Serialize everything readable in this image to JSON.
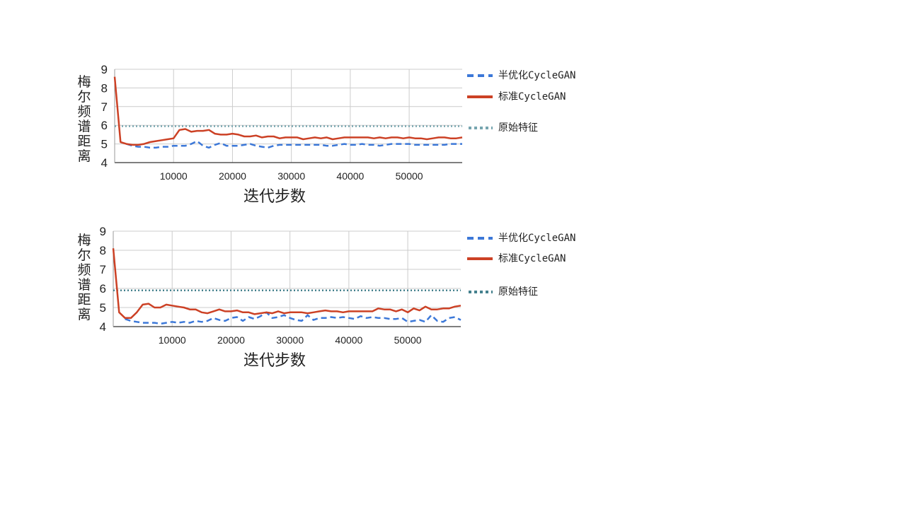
{
  "chart_data": [
    {
      "type": "line",
      "xlabel": "迭代步数",
      "ylabel": "梅尔频谱距离",
      "xlim": [
        0,
        59000
      ],
      "ylim": [
        4,
        9
      ],
      "xticks": [
        10000,
        20000,
        30000,
        40000,
        50000
      ],
      "yticks": [
        4,
        5,
        6,
        7,
        8,
        9
      ],
      "legend_position": "right",
      "series": [
        {
          "name": "半优化CycleGAN",
          "style": "dashed",
          "color": "#3c78d8",
          "x": [
            2000,
            3000,
            4000,
            5000,
            6000,
            7000,
            8000,
            9000,
            10000,
            11000,
            12000,
            13000,
            14000,
            15000,
            16000,
            17000,
            18000,
            19000,
            20000,
            21000,
            22000,
            23000,
            24000,
            25000,
            26000,
            27000,
            28000,
            29000,
            30000,
            31000,
            32000,
            33000,
            34000,
            35000,
            36000,
            37000,
            38000,
            39000,
            40000,
            41000,
            42000,
            43000,
            44000,
            45000,
            46000,
            47000,
            48000,
            49000,
            50000,
            51000,
            52000,
            53000,
            54000,
            55000,
            56000,
            57000,
            58000,
            59000
          ],
          "values": [
            5.0,
            4.9,
            4.85,
            4.85,
            4.8,
            4.8,
            4.85,
            4.85,
            4.9,
            4.9,
            4.9,
            5.0,
            5.15,
            4.9,
            4.8,
            4.95,
            5.05,
            4.9,
            4.9,
            4.9,
            4.95,
            5.0,
            4.9,
            4.85,
            4.8,
            4.9,
            4.95,
            4.95,
            4.95,
            4.95,
            4.95,
            4.95,
            4.95,
            4.95,
            4.9,
            4.9,
            4.95,
            5.0,
            4.95,
            4.95,
            5.0,
            4.95,
            4.95,
            4.9,
            4.95,
            5.0,
            5.0,
            5.0,
            5.0,
            4.95,
            4.95,
            4.95,
            4.95,
            4.95,
            4.95,
            5.0,
            5.0,
            5.0
          ]
        },
        {
          "name": "标准CycleGAN",
          "style": "solid",
          "color": "#cc4125",
          "x": [
            0,
            1000,
            2000,
            3000,
            4000,
            5000,
            6000,
            7000,
            8000,
            9000,
            10000,
            11000,
            12000,
            13000,
            14000,
            15000,
            16000,
            17000,
            18000,
            19000,
            20000,
            21000,
            22000,
            23000,
            24000,
            25000,
            26000,
            27000,
            28000,
            29000,
            30000,
            31000,
            32000,
            33000,
            34000,
            35000,
            36000,
            37000,
            38000,
            39000,
            40000,
            41000,
            42000,
            43000,
            44000,
            45000,
            46000,
            47000,
            48000,
            49000,
            50000,
            51000,
            52000,
            53000,
            54000,
            55000,
            56000,
            57000,
            58000,
            59000
          ],
          "values": [
            8.6,
            5.1,
            5.0,
            4.95,
            4.95,
            5.0,
            5.1,
            5.15,
            5.2,
            5.25,
            5.3,
            5.75,
            5.8,
            5.65,
            5.7,
            5.7,
            5.75,
            5.55,
            5.5,
            5.5,
            5.55,
            5.5,
            5.4,
            5.4,
            5.45,
            5.35,
            5.4,
            5.4,
            5.3,
            5.35,
            5.35,
            5.35,
            5.25,
            5.3,
            5.35,
            5.3,
            5.35,
            5.25,
            5.3,
            5.35,
            5.35,
            5.35,
            5.35,
            5.35,
            5.3,
            5.35,
            5.3,
            5.35,
            5.35,
            5.3,
            5.35,
            5.3,
            5.3,
            5.25,
            5.3,
            5.35,
            5.35,
            5.3,
            5.3,
            5.35
          ]
        },
        {
          "name": "原始特征",
          "style": "dotted",
          "color": "#76a5af",
          "x": [
            0,
            59000
          ],
          "values": [
            5.95,
            5.95
          ]
        }
      ]
    },
    {
      "type": "line",
      "xlabel": "迭代步数",
      "ylabel": "梅尔频谱距离",
      "xlim": [
        0,
        59000
      ],
      "ylim": [
        4,
        9
      ],
      "xticks": [
        10000,
        20000,
        30000,
        40000,
        50000
      ],
      "yticks": [
        4,
        5,
        6,
        7,
        8,
        9
      ],
      "legend_position": "right",
      "series": [
        {
          "name": "半优化CycleGAN",
          "style": "dashed",
          "color": "#3c78d8",
          "x": [
            2000,
            3000,
            4000,
            5000,
            6000,
            7000,
            8000,
            9000,
            10000,
            11000,
            12000,
            13000,
            14000,
            15000,
            16000,
            17000,
            18000,
            19000,
            20000,
            21000,
            22000,
            23000,
            24000,
            25000,
            26000,
            27000,
            28000,
            29000,
            30000,
            31000,
            32000,
            33000,
            34000,
            35000,
            36000,
            37000,
            38000,
            39000,
            40000,
            41000,
            42000,
            43000,
            44000,
            45000,
            46000,
            47000,
            48000,
            49000,
            50000,
            51000,
            52000,
            53000,
            54000,
            55000,
            56000,
            57000,
            58000,
            59000
          ],
          "values": [
            4.4,
            4.3,
            4.25,
            4.2,
            4.2,
            4.2,
            4.15,
            4.2,
            4.25,
            4.2,
            4.25,
            4.2,
            4.3,
            4.25,
            4.3,
            4.45,
            4.35,
            4.3,
            4.45,
            4.5,
            4.3,
            4.5,
            4.4,
            4.55,
            4.75,
            4.45,
            4.5,
            4.6,
            4.45,
            4.35,
            4.3,
            4.6,
            4.35,
            4.45,
            4.45,
            4.5,
            4.45,
            4.5,
            4.45,
            4.4,
            4.55,
            4.45,
            4.5,
            4.45,
            4.45,
            4.4,
            4.4,
            4.45,
            4.25,
            4.3,
            4.35,
            4.25,
            4.6,
            4.3,
            4.25,
            4.45,
            4.5,
            4.35
          ]
        },
        {
          "name": "标准CycleGAN",
          "style": "solid",
          "color": "#cc4125",
          "x": [
            0,
            1000,
            2000,
            3000,
            4000,
            5000,
            6000,
            7000,
            8000,
            9000,
            10000,
            11000,
            12000,
            13000,
            14000,
            15000,
            16000,
            17000,
            18000,
            19000,
            20000,
            21000,
            22000,
            23000,
            24000,
            25000,
            26000,
            27000,
            28000,
            29000,
            30000,
            31000,
            32000,
            33000,
            34000,
            35000,
            36000,
            37000,
            38000,
            39000,
            40000,
            41000,
            42000,
            43000,
            44000,
            45000,
            46000,
            47000,
            48000,
            49000,
            50000,
            51000,
            52000,
            53000,
            54000,
            55000,
            56000,
            57000,
            58000,
            59000
          ],
          "values": [
            8.1,
            4.75,
            4.45,
            4.45,
            4.75,
            5.15,
            5.2,
            5.0,
            5.0,
            5.15,
            5.1,
            5.05,
            5.0,
            4.9,
            4.9,
            4.75,
            4.7,
            4.8,
            4.9,
            4.8,
            4.8,
            4.85,
            4.75,
            4.75,
            4.65,
            4.7,
            4.75,
            4.7,
            4.8,
            4.7,
            4.75,
            4.75,
            4.75,
            4.7,
            4.75,
            4.8,
            4.85,
            4.8,
            4.8,
            4.75,
            4.8,
            4.8,
            4.8,
            4.8,
            4.8,
            4.95,
            4.9,
            4.9,
            4.8,
            4.9,
            4.75,
            4.95,
            4.85,
            5.05,
            4.9,
            4.9,
            4.95,
            4.95,
            5.05,
            5.1
          ]
        },
        {
          "name": "原始特征",
          "style": "dotted",
          "color": "#45818e",
          "x": [
            0,
            59000
          ],
          "values": [
            5.9,
            5.9
          ]
        }
      ]
    }
  ]
}
